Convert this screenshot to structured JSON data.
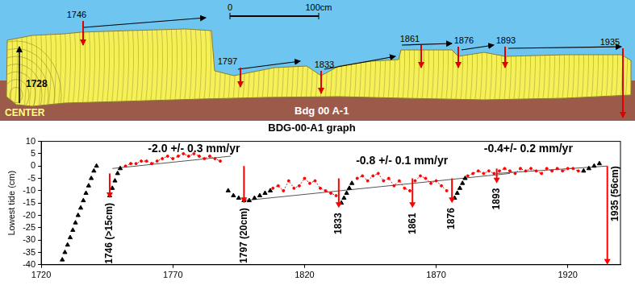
{
  "diagram": {
    "scale_bar": [
      "0",
      "100cm"
    ],
    "years": [
      "1746",
      "1797",
      "1833",
      "1861",
      "1876",
      "1893",
      "1935"
    ],
    "center_year": "1728",
    "center_label": "CENTER",
    "sample": "Bdg 00 A-1"
  },
  "chart_data": {
    "type": "scatter",
    "title": "BDG-00-A1 graph",
    "y_label": "Lowest tide (cm)",
    "xlim": [
      1720,
      1940
    ],
    "xticks": [
      1720,
      1770,
      1820,
      1870,
      1920
    ],
    "ylim": [
      -40,
      10
    ],
    "yticks": [
      -40,
      -35,
      -30,
      -25,
      -20,
      -15,
      -10,
      -5,
      0,
      5,
      10
    ],
    "grid": false,
    "series": [
      {
        "color": "#000000",
        "marker": "triangle",
        "line_style": "none",
        "x": [
          1728,
          1729,
          1730,
          1731,
          1732,
          1733,
          1734,
          1735,
          1736,
          1737,
          1738,
          1739,
          1740,
          1741,
          1746,
          1747,
          1748,
          1749,
          1750,
          1791,
          1793,
          1795,
          1797,
          1799,
          1801,
          1803,
          1805,
          1807,
          1834,
          1835,
          1836,
          1837,
          1838,
          1877,
          1878,
          1879,
          1880,
          1881,
          1926,
          1928,
          1930,
          1932
        ],
        "values": [
          -38,
          -35,
          -32,
          -29,
          -26,
          -23,
          -20,
          -17,
          -14,
          -11,
          -8,
          -5,
          -2,
          0,
          -12,
          -9,
          -6,
          -3,
          -1,
          -10,
          -12,
          -13,
          -14,
          -14,
          -13,
          -12,
          -11,
          -10,
          -15,
          -13,
          -11,
          -9,
          -7,
          -13,
          -11,
          -9,
          -7,
          -5,
          -2,
          -1,
          0,
          1
        ]
      },
      {
        "color": "#ff0000",
        "marker": "circle",
        "line_style": "dotted",
        "x": [
          1752,
          1754,
          1756,
          1758,
          1760,
          1762,
          1764,
          1766,
          1768,
          1770,
          1772,
          1774,
          1776,
          1778,
          1780,
          1782,
          1784,
          1786,
          1788,
          1790,
          1808,
          1810,
          1812,
          1814,
          1816,
          1818,
          1820,
          1822,
          1824,
          1826,
          1828,
          1830,
          1832,
          1836,
          1840,
          1842,
          1844,
          1846,
          1848,
          1850,
          1852,
          1854,
          1856,
          1858,
          1860,
          1861,
          1862,
          1864,
          1866,
          1868,
          1870,
          1872,
          1874,
          1878,
          1882,
          1884,
          1886,
          1888,
          1890,
          1892,
          1893,
          1894,
          1896,
          1898,
          1900,
          1902,
          1904,
          1906,
          1908,
          1910,
          1912,
          1914,
          1916,
          1918,
          1920,
          1922,
          1924
        ],
        "values": [
          0,
          1,
          1,
          2,
          2,
          1,
          2,
          3,
          4,
          3,
          4,
          5,
          4,
          5,
          4,
          3,
          4,
          3,
          2,
          null,
          -9,
          -8,
          -10,
          -6,
          -9,
          -8,
          -5,
          -7,
          -6,
          -9,
          -10,
          -11,
          -12,
          null,
          -5,
          -4,
          -6,
          -4,
          -3,
          -6,
          -5,
          -8,
          -6,
          -9,
          -10,
          null,
          -6,
          -4,
          -5,
          -7,
          -6,
          -8,
          -10,
          null,
          -4,
          -3,
          -2,
          -3,
          -2,
          -3,
          null,
          -2,
          -1,
          -2,
          -3,
          -1,
          -2,
          -1,
          -2,
          -3,
          -1,
          -2,
          -1,
          -2,
          -1,
          -1,
          -2
        ]
      },
      {
        "color": "#555555",
        "marker": "none",
        "line_style": "solid",
        "x": [
          1747,
          1792
        ],
        "values": [
          -1,
          4
        ]
      },
      {
        "color": "#555555",
        "marker": "none",
        "line_style": "solid",
        "x": [
          1797,
          1898
        ],
        "values": [
          -14,
          -3
        ]
      },
      {
        "color": "#555555",
        "marker": "none",
        "line_style": "solid",
        "x": [
          1893,
          1935
        ],
        "values": [
          -3,
          0
        ]
      }
    ],
    "annotations": [
      {
        "text": "-2.0 +/- 0.3 mm/yr",
        "x": 1778,
        "y": 7
      },
      {
        "text": "-0.8 +/- 0.1 mm/yr",
        "x": 1857,
        "y": 2
      },
      {
        "text": "-0.4+/- 0.2 mm/yr",
        "x": 1905,
        "y": 7
      }
    ],
    "arrows": [
      {
        "x": 1746,
        "from": -3,
        "to": -13,
        "text": "1746 (>15cm)",
        "color": "#ff0000"
      },
      {
        "x": 1797,
        "from": 0,
        "to": -15,
        "text": "1797 (20cm)",
        "color": "#ff0000"
      },
      {
        "x": 1833,
        "from": -5,
        "to": -17,
        "text": "1833",
        "color": "#ff0000"
      },
      {
        "x": 1861,
        "from": -5,
        "to": -17,
        "text": "1861",
        "color": "#ff0000"
      },
      {
        "x": 1876,
        "from": -5,
        "to": -15,
        "text": "1876",
        "color": "#ff0000"
      },
      {
        "x": 1893,
        "from": -1,
        "to": -7,
        "text": "1893",
        "color": "#ff0000"
      },
      {
        "x": 1935,
        "from": 0,
        "to": -40,
        "text": "1935 (56cm)",
        "color": "#ff0000"
      }
    ]
  }
}
